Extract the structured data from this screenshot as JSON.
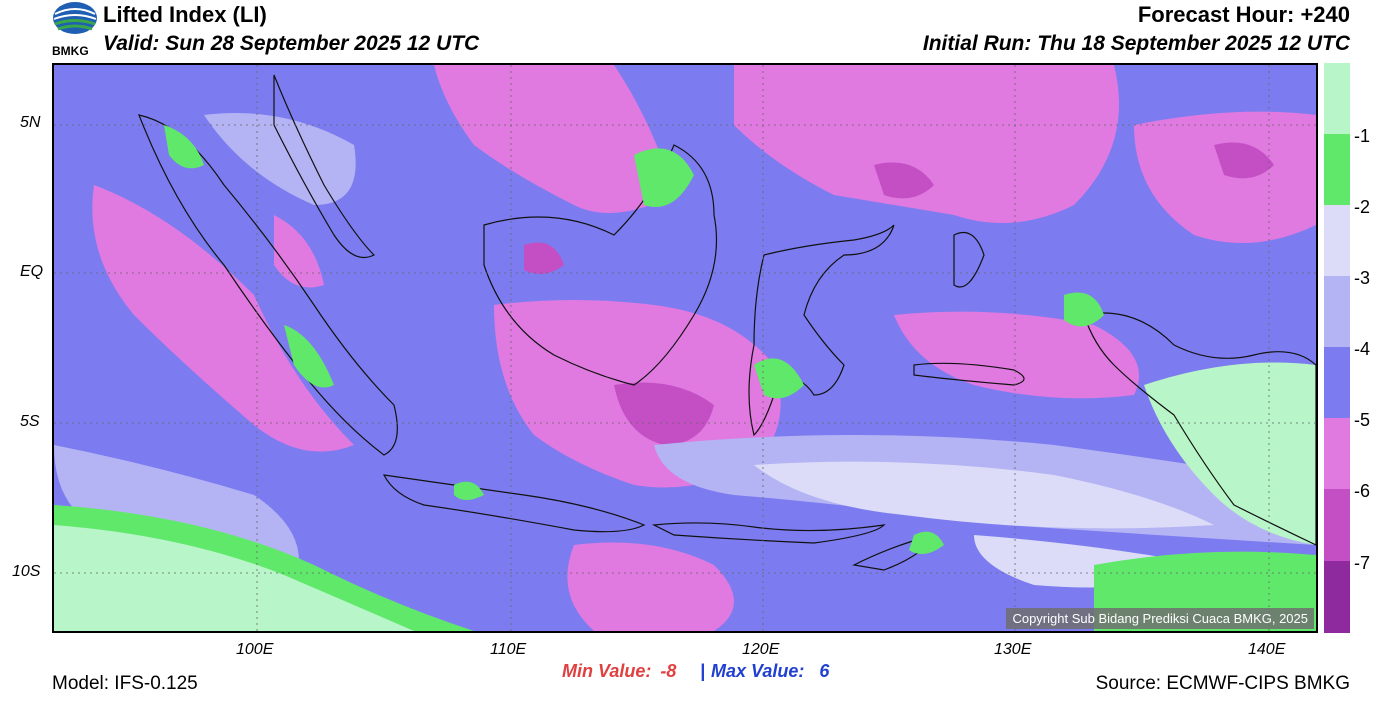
{
  "header": {
    "title": "Lifted Index (LI)",
    "valid": "Valid: Sun 28 September 2025 12 UTC",
    "forecast_hour": "Forecast Hour: +240",
    "initial_run": "Initial Run: Thu 18 September 2025 12 UTC",
    "logo_text": "BMKG"
  },
  "map": {
    "lat_labels": [
      "5N",
      "EQ",
      "5S",
      "10S"
    ],
    "lon_labels": [
      "100E",
      "110E",
      "120E",
      "130E",
      "140E"
    ],
    "copyright": "Copyright Sub Bidang Prediksi Cuaca BMKG, 2025"
  },
  "colorbar": {
    "labels": [
      "-1",
      "-2",
      "-3",
      "-4",
      "-5",
      "-6",
      "-7"
    ],
    "colors": [
      "#b8f5c8",
      "#5fe86a",
      "#dcdcf8",
      "#b4b4f4",
      "#7c7cf0",
      "#e07ae0",
      "#c44fc4",
      "#8e2a9e"
    ]
  },
  "footer": {
    "model": "Model: IFS-0.125",
    "min_label": "Min Value:",
    "min_value": "-8",
    "separator": "|",
    "max_label": "Max Value:",
    "max_value": "6",
    "source": "Source: ECMWF-CIPS BMKG"
  }
}
